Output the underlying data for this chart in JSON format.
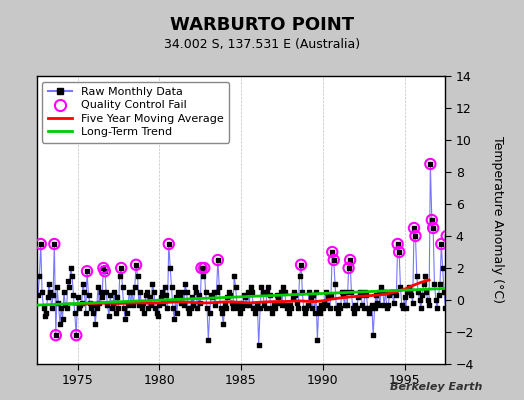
{
  "title": "WARBURTO POINT",
  "subtitle": "34.002 S, 137.531 E (Australia)",
  "ylabel": "Temperature Anomaly (°C)",
  "watermark": "Berkeley Earth",
  "ylim": [
    -4,
    14
  ],
  "yticks": [
    -4,
    -2,
    0,
    2,
    4,
    6,
    8,
    10,
    12,
    14
  ],
  "xlim": [
    1972.5,
    1997.5
  ],
  "xticks": [
    1975,
    1980,
    1985,
    1990,
    1995
  ],
  "bg_color": "#c8c8c8",
  "plot_bg_color": "#ffffff",
  "grid_color": "#c0c0c0",
  "raw_line_color": "#7777ff",
  "raw_dot_color": "#000000",
  "qc_fail_color": "#ff00ff",
  "ma_color": "#ff0000",
  "trend_color": "#00cc00",
  "raw_data": [
    [
      1972.58,
      0.3
    ],
    [
      1972.67,
      1.5
    ],
    [
      1972.75,
      3.5
    ],
    [
      1972.83,
      0.5
    ],
    [
      1972.92,
      -0.5
    ],
    [
      1973.0,
      -1.0
    ],
    [
      1973.08,
      -0.8
    ],
    [
      1973.17,
      0.2
    ],
    [
      1973.25,
      1.0
    ],
    [
      1973.33,
      0.5
    ],
    [
      1973.42,
      -0.5
    ],
    [
      1973.5,
      0.3
    ],
    [
      1973.58,
      3.5
    ],
    [
      1973.67,
      -2.2
    ],
    [
      1973.75,
      0.8
    ],
    [
      1973.83,
      -0.2
    ],
    [
      1973.92,
      -1.5
    ],
    [
      1974.0,
      -0.5
    ],
    [
      1974.08,
      -1.2
    ],
    [
      1974.17,
      0.5
    ],
    [
      1974.25,
      -0.3
    ],
    [
      1974.33,
      -0.5
    ],
    [
      1974.42,
      1.2
    ],
    [
      1974.5,
      0.8
    ],
    [
      1974.58,
      2.0
    ],
    [
      1974.67,
      1.5
    ],
    [
      1974.75,
      0.3
    ],
    [
      1974.83,
      -0.8
    ],
    [
      1974.92,
      -2.2
    ],
    [
      1975.0,
      0.2
    ],
    [
      1975.08,
      -0.5
    ],
    [
      1975.17,
      -0.3
    ],
    [
      1975.25,
      -0.2
    ],
    [
      1975.33,
      1.0
    ],
    [
      1975.42,
      0.5
    ],
    [
      1975.5,
      -0.8
    ],
    [
      1975.58,
      1.8
    ],
    [
      1975.67,
      0.3
    ],
    [
      1975.75,
      -0.2
    ],
    [
      1975.83,
      -0.5
    ],
    [
      1975.92,
      -0.8
    ],
    [
      1976.0,
      -0.3
    ],
    [
      1976.08,
      -1.5
    ],
    [
      1976.17,
      -0.5
    ],
    [
      1976.25,
      0.8
    ],
    [
      1976.33,
      -0.2
    ],
    [
      1976.42,
      0.5
    ],
    [
      1976.5,
      0.2
    ],
    [
      1976.58,
      2.0
    ],
    [
      1976.67,
      1.8
    ],
    [
      1976.75,
      0.5
    ],
    [
      1976.83,
      -0.3
    ],
    [
      1976.92,
      -1.0
    ],
    [
      1977.0,
      0.3
    ],
    [
      1977.08,
      -0.5
    ],
    [
      1977.17,
      -0.2
    ],
    [
      1977.25,
      0.5
    ],
    [
      1977.33,
      -0.8
    ],
    [
      1977.42,
      0.2
    ],
    [
      1977.5,
      -0.5
    ],
    [
      1977.58,
      1.5
    ],
    [
      1977.67,
      2.0
    ],
    [
      1977.75,
      0.8
    ],
    [
      1977.83,
      -0.5
    ],
    [
      1977.92,
      -1.2
    ],
    [
      1978.0,
      -0.8
    ],
    [
      1978.08,
      -0.3
    ],
    [
      1978.17,
      0.5
    ],
    [
      1978.25,
      -0.2
    ],
    [
      1978.33,
      0.5
    ],
    [
      1978.42,
      -0.3
    ],
    [
      1978.5,
      0.8
    ],
    [
      1978.58,
      2.2
    ],
    [
      1978.67,
      1.5
    ],
    [
      1978.75,
      -0.3
    ],
    [
      1978.83,
      0.5
    ],
    [
      1978.92,
      -0.5
    ],
    [
      1979.0,
      -0.2
    ],
    [
      1979.08,
      -0.8
    ],
    [
      1979.17,
      0.3
    ],
    [
      1979.25,
      0.5
    ],
    [
      1979.33,
      -0.5
    ],
    [
      1979.42,
      0.2
    ],
    [
      1979.5,
      -0.3
    ],
    [
      1979.58,
      1.0
    ],
    [
      1979.67,
      0.5
    ],
    [
      1979.75,
      -0.5
    ],
    [
      1979.83,
      -0.8
    ],
    [
      1979.92,
      -1.0
    ],
    [
      1980.0,
      -0.3
    ],
    [
      1980.08,
      0.2
    ],
    [
      1980.17,
      0.5
    ],
    [
      1980.25,
      -0.2
    ],
    [
      1980.33,
      0.8
    ],
    [
      1980.42,
      0.3
    ],
    [
      1980.5,
      -0.5
    ],
    [
      1980.58,
      3.5
    ],
    [
      1980.67,
      2.0
    ],
    [
      1980.75,
      0.8
    ],
    [
      1980.83,
      -0.5
    ],
    [
      1980.92,
      -1.2
    ],
    [
      1981.0,
      0.2
    ],
    [
      1981.08,
      -0.8
    ],
    [
      1981.17,
      0.5
    ],
    [
      1981.25,
      0.3
    ],
    [
      1981.33,
      -0.2
    ],
    [
      1981.42,
      0.5
    ],
    [
      1981.5,
      -0.3
    ],
    [
      1981.58,
      1.0
    ],
    [
      1981.67,
      0.5
    ],
    [
      1981.75,
      -0.5
    ],
    [
      1981.83,
      -0.8
    ],
    [
      1981.92,
      -0.5
    ],
    [
      1982.0,
      0.2
    ],
    [
      1982.08,
      -0.3
    ],
    [
      1982.17,
      0.8
    ],
    [
      1982.25,
      0.5
    ],
    [
      1982.33,
      -0.5
    ],
    [
      1982.42,
      0.3
    ],
    [
      1982.5,
      -0.2
    ],
    [
      1982.58,
      2.0
    ],
    [
      1982.67,
      1.5
    ],
    [
      1982.75,
      2.0
    ],
    [
      1982.83,
      0.5
    ],
    [
      1982.92,
      -0.5
    ],
    [
      1983.0,
      -2.5
    ],
    [
      1983.08,
      -0.8
    ],
    [
      1983.17,
      0.3
    ],
    [
      1983.25,
      0.2
    ],
    [
      1983.33,
      0.5
    ],
    [
      1983.42,
      -0.3
    ],
    [
      1983.5,
      0.5
    ],
    [
      1983.58,
      2.5
    ],
    [
      1983.67,
      0.8
    ],
    [
      1983.75,
      -0.5
    ],
    [
      1983.83,
      -0.8
    ],
    [
      1983.92,
      -1.5
    ],
    [
      1984.0,
      -0.3
    ],
    [
      1984.08,
      -0.5
    ],
    [
      1984.17,
      0.2
    ],
    [
      1984.25,
      0.5
    ],
    [
      1984.33,
      0.3
    ],
    [
      1984.42,
      -0.2
    ],
    [
      1984.5,
      -0.5
    ],
    [
      1984.58,
      1.5
    ],
    [
      1984.67,
      0.8
    ],
    [
      1984.75,
      -0.3
    ],
    [
      1984.83,
      -0.5
    ],
    [
      1984.92,
      -0.8
    ],
    [
      1985.0,
      -0.2
    ],
    [
      1985.08,
      -0.5
    ],
    [
      1985.17,
      0.3
    ],
    [
      1985.25,
      0.2
    ],
    [
      1985.33,
      -0.3
    ],
    [
      1985.42,
      0.5
    ],
    [
      1985.5,
      -0.3
    ],
    [
      1985.58,
      0.8
    ],
    [
      1985.67,
      0.5
    ],
    [
      1985.75,
      -0.5
    ],
    [
      1985.83,
      -0.8
    ],
    [
      1985.92,
      -0.5
    ],
    [
      1986.0,
      -0.3
    ],
    [
      1986.08,
      -2.8
    ],
    [
      1986.17,
      -0.5
    ],
    [
      1986.25,
      0.8
    ],
    [
      1986.33,
      0.5
    ],
    [
      1986.42,
      -0.3
    ],
    [
      1986.5,
      -0.5
    ],
    [
      1986.58,
      0.5
    ],
    [
      1986.67,
      0.8
    ],
    [
      1986.75,
      0.3
    ],
    [
      1986.83,
      -0.5
    ],
    [
      1986.92,
      -0.8
    ],
    [
      1987.0,
      -0.3
    ],
    [
      1987.08,
      -0.5
    ],
    [
      1987.17,
      0.3
    ],
    [
      1987.25,
      0.2
    ],
    [
      1987.33,
      -0.2
    ],
    [
      1987.42,
      0.5
    ],
    [
      1987.5,
      -0.3
    ],
    [
      1987.58,
      0.8
    ],
    [
      1987.67,
      0.5
    ],
    [
      1987.75,
      -0.3
    ],
    [
      1987.83,
      -0.5
    ],
    [
      1987.92,
      -0.8
    ],
    [
      1988.0,
      -0.3
    ],
    [
      1988.08,
      -0.5
    ],
    [
      1988.17,
      0.2
    ],
    [
      1988.25,
      0.5
    ],
    [
      1988.33,
      0.3
    ],
    [
      1988.42,
      -0.2
    ],
    [
      1988.5,
      -0.5
    ],
    [
      1988.58,
      1.5
    ],
    [
      1988.67,
      2.2
    ],
    [
      1988.75,
      0.5
    ],
    [
      1988.83,
      -0.5
    ],
    [
      1988.92,
      -0.8
    ],
    [
      1989.0,
      -0.5
    ],
    [
      1989.08,
      -0.3
    ],
    [
      1989.17,
      0.5
    ],
    [
      1989.25,
      0.2
    ],
    [
      1989.33,
      -0.5
    ],
    [
      1989.42,
      0.3
    ],
    [
      1989.5,
      -0.8
    ],
    [
      1989.58,
      0.5
    ],
    [
      1989.67,
      -2.5
    ],
    [
      1989.75,
      -0.5
    ],
    [
      1989.83,
      -0.8
    ],
    [
      1989.92,
      -0.3
    ],
    [
      1990.0,
      -0.5
    ],
    [
      1990.08,
      -0.2
    ],
    [
      1990.17,
      0.5
    ],
    [
      1990.25,
      -0.3
    ],
    [
      1990.33,
      0.2
    ],
    [
      1990.42,
      -0.5
    ],
    [
      1990.5,
      0.3
    ],
    [
      1990.58,
      3.0
    ],
    [
      1990.67,
      2.5
    ],
    [
      1990.75,
      1.0
    ],
    [
      1990.83,
      -0.5
    ],
    [
      1990.92,
      -0.8
    ],
    [
      1991.0,
      -0.3
    ],
    [
      1991.08,
      -0.5
    ],
    [
      1991.17,
      0.5
    ],
    [
      1991.25,
      0.3
    ],
    [
      1991.33,
      -0.3
    ],
    [
      1991.42,
      0.5
    ],
    [
      1991.5,
      -0.3
    ],
    [
      1991.58,
      2.0
    ],
    [
      1991.67,
      2.5
    ],
    [
      1991.75,
      0.5
    ],
    [
      1991.83,
      -0.5
    ],
    [
      1991.92,
      -0.8
    ],
    [
      1992.0,
      -0.3
    ],
    [
      1992.08,
      -0.5
    ],
    [
      1992.17,
      0.2
    ],
    [
      1992.25,
      0.5
    ],
    [
      1992.33,
      0.3
    ],
    [
      1992.42,
      -0.3
    ],
    [
      1992.5,
      -0.5
    ],
    [
      1992.58,
      0.5
    ],
    [
      1992.67,
      0.3
    ],
    [
      1992.75,
      -0.5
    ],
    [
      1992.83,
      -0.8
    ],
    [
      1992.92,
      -0.5
    ],
    [
      1993.0,
      -0.3
    ],
    [
      1993.08,
      -2.2
    ],
    [
      1993.17,
      -0.5
    ],
    [
      1993.25,
      0.3
    ],
    [
      1993.33,
      -0.2
    ],
    [
      1993.42,
      0.5
    ],
    [
      1993.5,
      -0.3
    ],
    [
      1993.58,
      0.8
    ],
    [
      1993.67,
      0.5
    ],
    [
      1993.75,
      -0.3
    ],
    [
      1993.83,
      0.5
    ],
    [
      1993.92,
      -0.5
    ],
    [
      1994.0,
      -0.3
    ],
    [
      1994.08,
      0.3
    ],
    [
      1994.17,
      0.5
    ],
    [
      1994.25,
      0.5
    ],
    [
      1994.33,
      -0.2
    ],
    [
      1994.42,
      0.5
    ],
    [
      1994.5,
      0.3
    ],
    [
      1994.58,
      3.5
    ],
    [
      1994.67,
      3.0
    ],
    [
      1994.75,
      0.8
    ],
    [
      1994.83,
      -0.3
    ],
    [
      1994.92,
      -0.5
    ],
    [
      1995.0,
      0.2
    ],
    [
      1995.08,
      -0.5
    ],
    [
      1995.17,
      0.5
    ],
    [
      1995.25,
      0.8
    ],
    [
      1995.33,
      0.5
    ],
    [
      1995.42,
      0.3
    ],
    [
      1995.5,
      -0.2
    ],
    [
      1995.58,
      4.5
    ],
    [
      1995.67,
      4.0
    ],
    [
      1995.75,
      1.5
    ],
    [
      1995.83,
      0.5
    ],
    [
      1995.92,
      0.0
    ],
    [
      1996.0,
      -0.5
    ],
    [
      1996.08,
      0.3
    ],
    [
      1996.17,
      1.0
    ],
    [
      1996.25,
      1.5
    ],
    [
      1996.33,
      0.5
    ],
    [
      1996.42,
      0.0
    ],
    [
      1996.5,
      -0.3
    ],
    [
      1996.58,
      8.5
    ],
    [
      1996.67,
      5.0
    ],
    [
      1996.75,
      4.5
    ],
    [
      1996.83,
      1.0
    ],
    [
      1996.92,
      0.0
    ],
    [
      1997.0,
      -0.5
    ],
    [
      1997.08,
      0.3
    ],
    [
      1997.17,
      1.0
    ],
    [
      1997.25,
      3.5
    ],
    [
      1997.33,
      2.0
    ],
    [
      1997.42,
      0.5
    ],
    [
      1997.5,
      -0.5
    ],
    [
      1997.58,
      4.0
    ],
    [
      1997.67,
      1.0
    ],
    [
      1997.75,
      0.5
    ],
    [
      1997.83,
      -0.3
    ],
    [
      1997.92,
      0.5
    ]
  ],
  "qc_fail_points": [
    [
      1972.75,
      3.5
    ],
    [
      1973.58,
      3.5
    ],
    [
      1973.67,
      -2.2
    ],
    [
      1974.92,
      -2.2
    ],
    [
      1975.58,
      1.8
    ],
    [
      1976.58,
      2.0
    ],
    [
      1976.67,
      1.8
    ],
    [
      1977.67,
      2.0
    ],
    [
      1978.58,
      2.2
    ],
    [
      1980.58,
      3.5
    ],
    [
      1982.58,
      2.0
    ],
    [
      1982.75,
      2.0
    ],
    [
      1983.58,
      2.5
    ],
    [
      1988.67,
      2.2
    ],
    [
      1990.58,
      3.0
    ],
    [
      1990.67,
      2.5
    ],
    [
      1991.58,
      2.0
    ],
    [
      1991.67,
      2.5
    ],
    [
      1994.58,
      3.5
    ],
    [
      1994.67,
      3.0
    ],
    [
      1995.58,
      4.5
    ],
    [
      1995.67,
      4.0
    ],
    [
      1996.58,
      8.5
    ],
    [
      1996.67,
      5.0
    ],
    [
      1996.75,
      4.5
    ],
    [
      1997.25,
      3.5
    ],
    [
      1997.58,
      4.0
    ]
  ],
  "ma_data": [
    [
      1974.5,
      -0.25
    ],
    [
      1975.0,
      -0.28
    ],
    [
      1975.5,
      -0.25
    ],
    [
      1976.0,
      -0.22
    ],
    [
      1976.5,
      -0.2
    ],
    [
      1977.0,
      -0.2
    ],
    [
      1977.5,
      -0.22
    ],
    [
      1978.0,
      -0.2
    ],
    [
      1978.5,
      -0.18
    ],
    [
      1979.0,
      -0.18
    ],
    [
      1979.5,
      -0.2
    ],
    [
      1980.0,
      -0.18
    ],
    [
      1980.5,
      -0.15
    ],
    [
      1981.0,
      -0.12
    ],
    [
      1981.5,
      -0.12
    ],
    [
      1982.0,
      -0.15
    ],
    [
      1982.5,
      -0.18
    ],
    [
      1983.0,
      -0.18
    ],
    [
      1983.5,
      -0.15
    ],
    [
      1984.0,
      -0.12
    ],
    [
      1984.5,
      -0.12
    ],
    [
      1985.0,
      -0.15
    ],
    [
      1985.5,
      -0.18
    ],
    [
      1986.0,
      -0.15
    ],
    [
      1986.5,
      -0.12
    ],
    [
      1987.0,
      -0.1
    ],
    [
      1987.5,
      -0.1
    ],
    [
      1988.0,
      -0.08
    ],
    [
      1988.5,
      -0.05
    ],
    [
      1989.0,
      -0.08
    ],
    [
      1989.5,
      -0.1
    ],
    [
      1990.0,
      -0.05
    ],
    [
      1990.5,
      0.05
    ],
    [
      1991.0,
      0.12
    ],
    [
      1991.5,
      0.18
    ],
    [
      1992.0,
      0.22
    ],
    [
      1992.5,
      0.25
    ],
    [
      1993.0,
      0.28
    ],
    [
      1993.5,
      0.32
    ],
    [
      1994.0,
      0.4
    ],
    [
      1994.5,
      0.52
    ],
    [
      1995.0,
      0.68
    ],
    [
      1995.5,
      0.9
    ],
    [
      1996.0,
      1.1
    ],
    [
      1996.5,
      1.25
    ]
  ],
  "trend_data": [
    [
      1972.5,
      -0.32
    ],
    [
      1997.5,
      0.72
    ]
  ],
  "legend_loc": "upper left",
  "title_fontsize": 13,
  "subtitle_fontsize": 9,
  "tick_fontsize": 9,
  "ylabel_fontsize": 9
}
